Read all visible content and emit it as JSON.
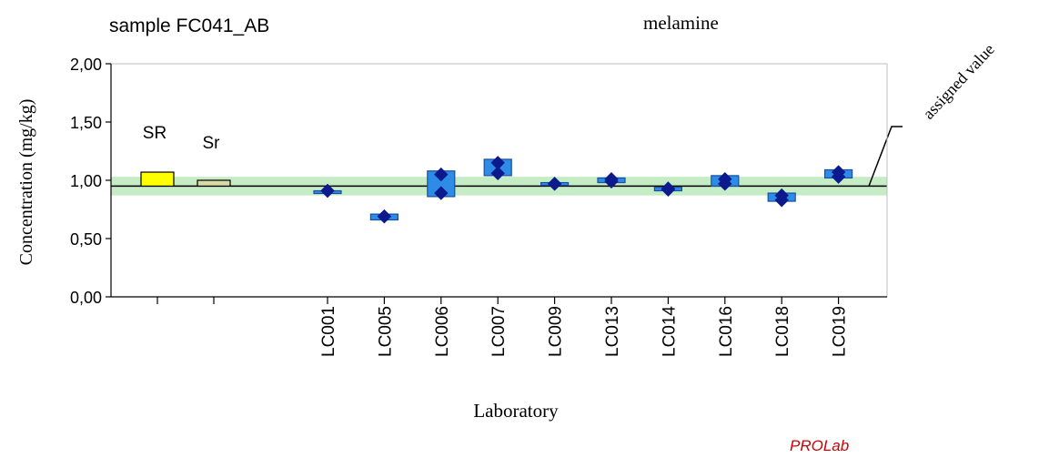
{
  "header": {
    "sample": "sample FC041_AB",
    "analyte": "melamine",
    "assigned_value_label": "assigned value",
    "brand": "PROLab"
  },
  "colors": {
    "band": "#c6ecc6",
    "box_fill": "#2e8be6",
    "box_stroke": "#1a4fa0",
    "marker": "#0b1a8c",
    "sr_fill": "#ffff00",
    "sr_small_fill": "#d9d9a6",
    "brand": "#cc0000"
  },
  "chart_data": {
    "type": "box",
    "title": "melamine",
    "xlabel": "Laboratory",
    "ylabel": "Concentration (mg/kg)",
    "ylim": [
      0,
      2
    ],
    "yticks": [
      "0,00",
      "0,50",
      "1,00",
      "1,50",
      "2,00"
    ],
    "grid": false,
    "assigned_value": 0.95,
    "tolerance_band": [
      0.87,
      1.03
    ],
    "precision_bars": [
      {
        "label": "SR",
        "low": 0.95,
        "high": 1.07
      },
      {
        "label": "Sr",
        "low": 0.95,
        "high": 1.0
      }
    ],
    "laboratories": [
      {
        "name": "LC001",
        "low": 0.9,
        "high": 0.91,
        "points": [
          0.91,
          0.91
        ]
      },
      {
        "name": "LC005",
        "low": 0.66,
        "high": 0.71,
        "points": [
          0.69,
          0.69
        ]
      },
      {
        "name": "LC006",
        "low": 0.86,
        "high": 1.08,
        "points": [
          0.89,
          1.05
        ]
      },
      {
        "name": "LC007",
        "low": 1.04,
        "high": 1.18,
        "points": [
          1.06,
          1.15
        ]
      },
      {
        "name": "LC009",
        "low": 0.96,
        "high": 0.98,
        "points": [
          0.97,
          0.97
        ]
      },
      {
        "name": "LC013",
        "low": 0.98,
        "high": 1.02,
        "points": [
          0.99,
          1.01
        ]
      },
      {
        "name": "LC014",
        "low": 0.91,
        "high": 0.94,
        "points": [
          0.92,
          0.93
        ]
      },
      {
        "name": "LC016",
        "low": 0.95,
        "high": 1.04,
        "points": [
          0.97,
          1.01
        ]
      },
      {
        "name": "LC018",
        "low": 0.82,
        "high": 0.89,
        "points": [
          0.83,
          0.87
        ]
      },
      {
        "name": "LC019",
        "low": 1.02,
        "high": 1.09,
        "points": [
          1.03,
          1.07
        ]
      }
    ]
  }
}
